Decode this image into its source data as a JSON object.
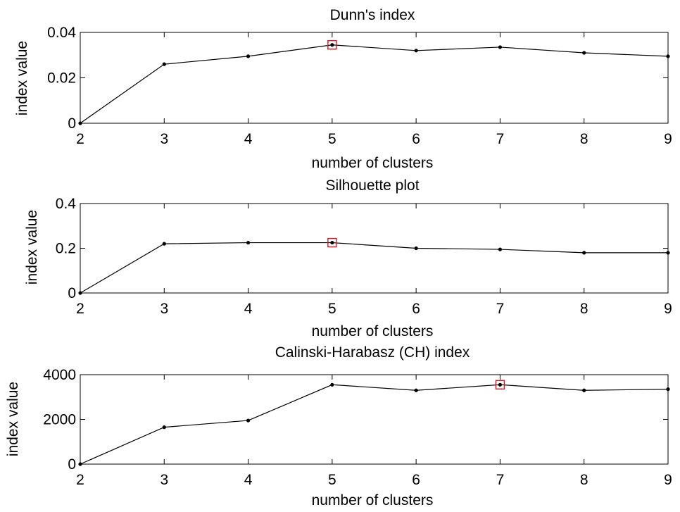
{
  "chart_data": [
    {
      "type": "line",
      "title": "Dunn's index",
      "xlabel": "number of clusters",
      "ylabel": "index value",
      "x": [
        2,
        3,
        4,
        5,
        6,
        7,
        8,
        9
      ],
      "xlim": [
        2,
        9
      ],
      "ylim": [
        0,
        0.04
      ],
      "xticks": [
        "2",
        "3",
        "4",
        "5",
        "6",
        "7",
        "8",
        "9"
      ],
      "yticks": [
        "0",
        "0.02",
        "0.04"
      ],
      "series": [
        {
          "values": [
            0,
            0.026,
            0.0295,
            0.0345,
            0.032,
            0.0335,
            0.031,
            0.0295
          ]
        }
      ],
      "highlight": {
        "x": 5,
        "y": 0.0345
      },
      "line_color": "#000000",
      "marker_color": "#000000",
      "highlight_color": "#e0141e",
      "grid": false
    },
    {
      "type": "line",
      "title": "Silhouette plot",
      "xlabel": "number of clusters",
      "ylabel": "index value",
      "x": [
        2,
        3,
        4,
        5,
        6,
        7,
        8,
        9
      ],
      "xlim": [
        2,
        9
      ],
      "ylim": [
        0,
        0.4
      ],
      "xticks": [
        "2",
        "3",
        "4",
        "5",
        "6",
        "7",
        "8",
        "9"
      ],
      "yticks": [
        "0",
        "0.2",
        "0.4"
      ],
      "series": [
        {
          "values": [
            0,
            0.22,
            0.225,
            0.225,
            0.2,
            0.195,
            0.18,
            0.18
          ]
        }
      ],
      "highlight": {
        "x": 5,
        "y": 0.225
      },
      "line_color": "#000000",
      "marker_color": "#000000",
      "highlight_color": "#e0141e",
      "grid": false
    },
    {
      "type": "line",
      "title": "Calinski-Harabasz (CH) index",
      "xlabel": "number of clusters",
      "ylabel": "index value",
      "x": [
        2,
        3,
        4,
        5,
        6,
        7,
        8,
        9
      ],
      "xlim": [
        2,
        9
      ],
      "ylim": [
        0,
        4000
      ],
      "xticks": [
        "2",
        "3",
        "4",
        "5",
        "6",
        "7",
        "8",
        "9"
      ],
      "yticks": [
        "0",
        "2000",
        "4000"
      ],
      "series": [
        {
          "values": [
            0,
            1650,
            1950,
            3550,
            3300,
            3550,
            3300,
            3350
          ]
        }
      ],
      "highlight": {
        "x": 7,
        "y": 3550
      },
      "line_color": "#000000",
      "marker_color": "#000000",
      "highlight_color": "#e0141e",
      "grid": false
    }
  ]
}
